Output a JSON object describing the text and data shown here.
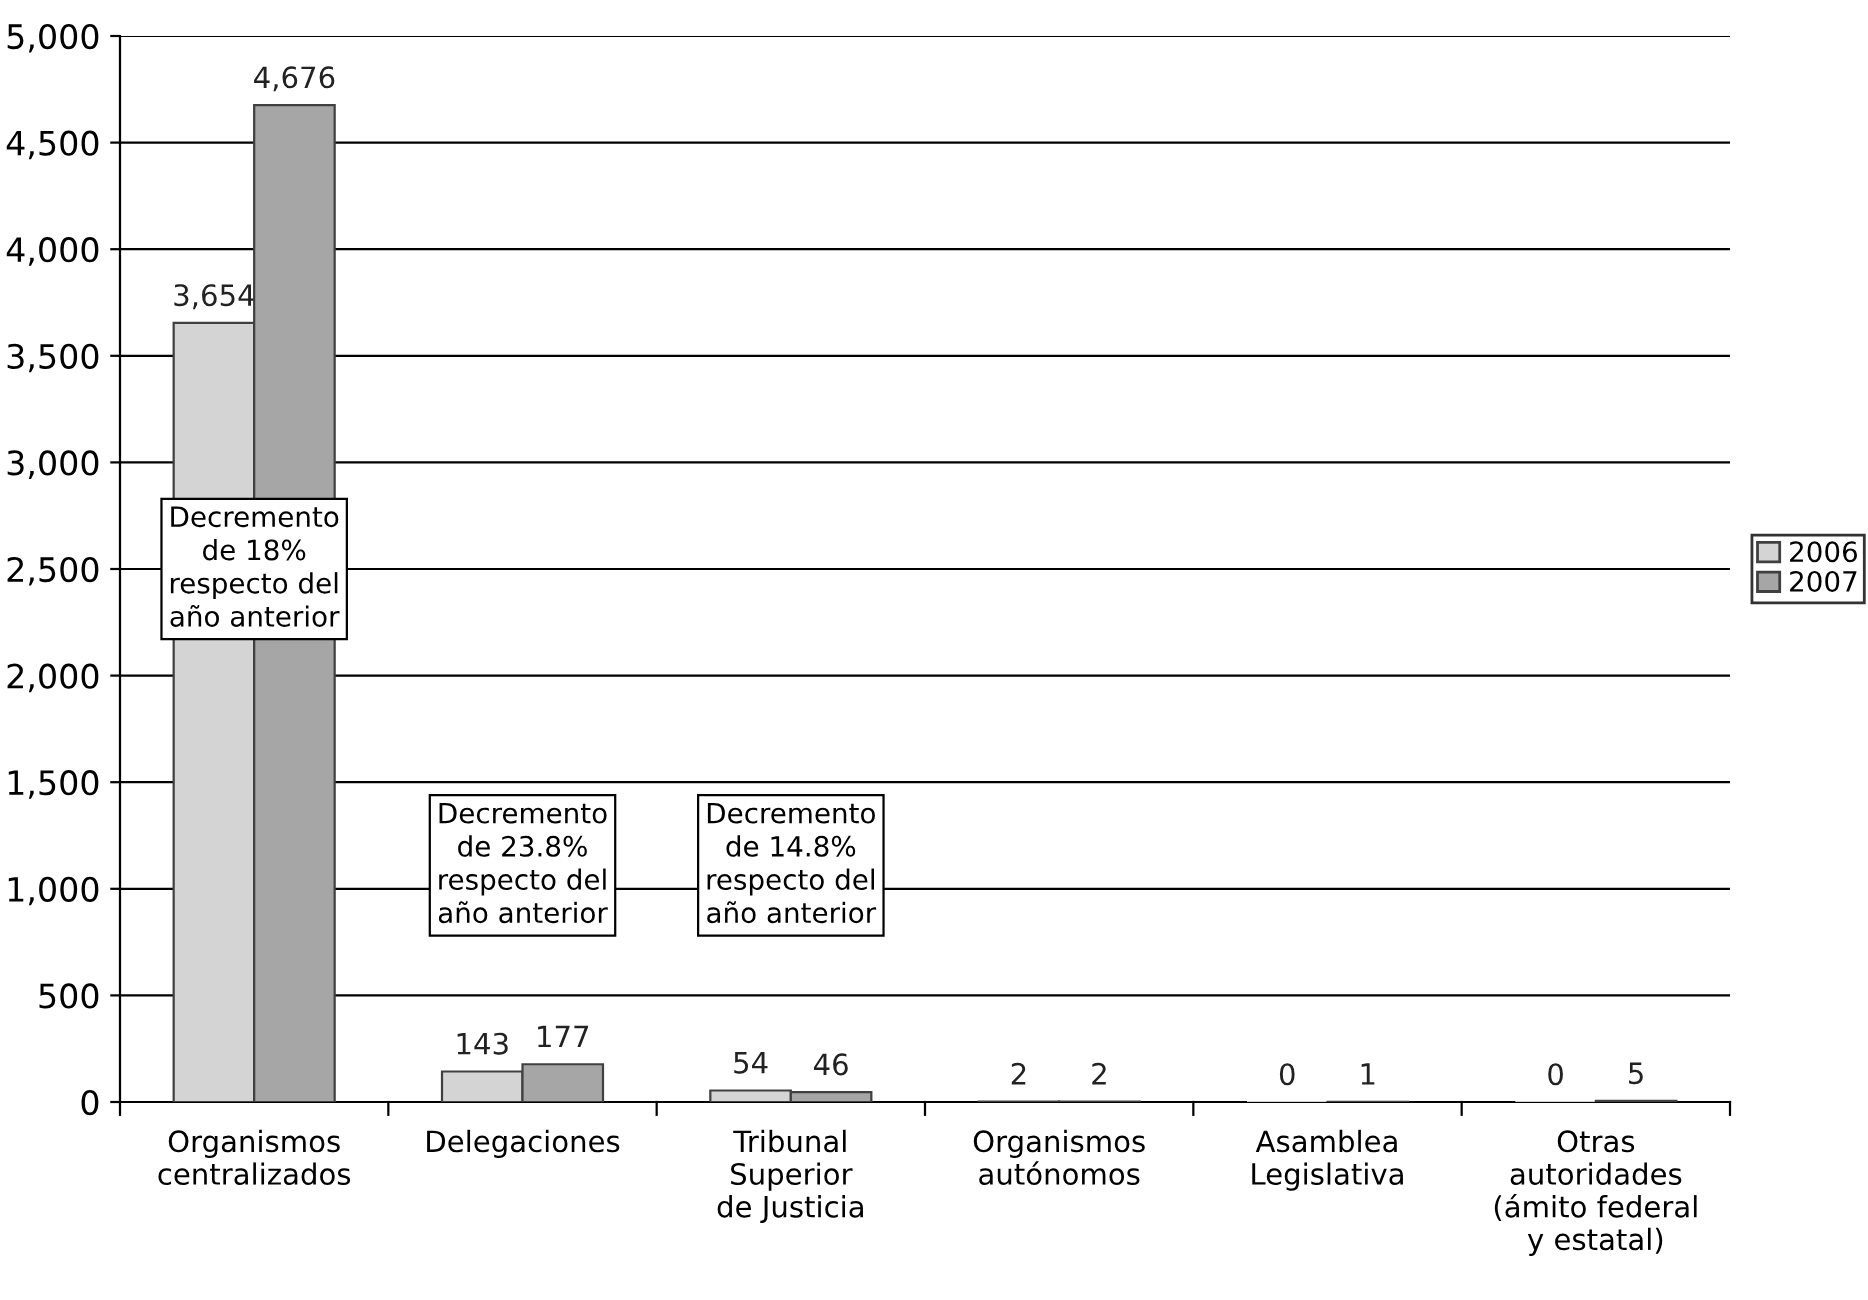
{
  "chart_data": {
    "type": "bar",
    "categories": [
      "Organismos\ncentralizados",
      "Delegaciones",
      "Tribunal\nSuperior\nde Justicia",
      "Organismos\nautónomos",
      "Asamblea\nLegislativa",
      "Otras\nautoridades\n(ámito federal\ny estatal)"
    ],
    "series": [
      {
        "name": "2006",
        "color": "#d4d4d4",
        "values": [
          3654,
          143,
          54,
          2,
          0,
          0
        ],
        "value_labels": [
          "3,654",
          "143",
          "54",
          "2",
          "0",
          "0"
        ]
      },
      {
        "name": "2007",
        "color": "#a6a6a6",
        "values": [
          4676,
          177,
          46,
          2,
          1,
          5
        ],
        "value_labels": [
          "4,676",
          "177",
          "46",
          "2",
          "1",
          "5"
        ]
      }
    ],
    "ylim": [
      0,
      5000
    ],
    "yticks": [
      0,
      {
        "value": 500,
        "label": "500"
      },
      {
        "value": 1000,
        "label": "1,000"
      },
      {
        "value": 1500,
        "label": "1,500"
      },
      {
        "value": 2000,
        "label": "2,000"
      },
      {
        "value": 2500,
        "label": "2,500"
      },
      {
        "value": 3000,
        "label": "3,000"
      },
      {
        "value": 3500,
        "label": "3,500"
      },
      {
        "value": 4000,
        "label": "4,000"
      },
      {
        "value": 4500,
        "label": "4,500"
      },
      {
        "value": 5000,
        "label": "5,000"
      }
    ],
    "grid": "y",
    "legend": "right",
    "annotations": [
      "Decremento\nde 18%\nrespecto del\naño anterior",
      "Decremento\nde 23.8%\nrespecto del\naño anterior",
      "Decremento\nde 14.8%\nrespecto del\naño anterior"
    ]
  }
}
